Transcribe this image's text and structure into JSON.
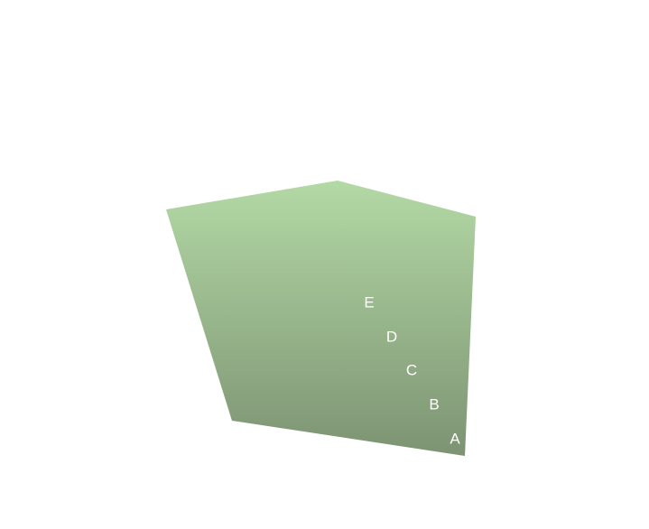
{
  "diagram": {
    "shape": "pentagon",
    "fill_gradient": {
      "top": "#b3d9a5",
      "bottom": "#7d9373"
    },
    "label_color": "#ffffff",
    "labels": [
      "A",
      "B",
      "C",
      "D",
      "E"
    ]
  }
}
